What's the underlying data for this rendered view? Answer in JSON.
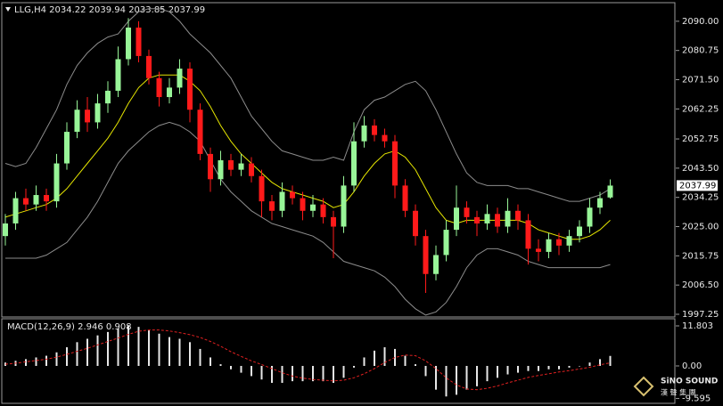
{
  "chart_data": [
    {
      "type": "candlestick",
      "title": "LLG,H4 2034.22 2039.94 2033.85 2037.99",
      "up_color": "#98f598",
      "down_color": "#ff1a1a",
      "ylim": [
        1996.4,
        2095.6
      ],
      "yticks": [
        {
          "value": 2090,
          "label": "2090.00"
        },
        {
          "value": 2080.75,
          "label": "2080.75"
        },
        {
          "value": 2071.5,
          "label": "2071.50"
        },
        {
          "value": 2062.25,
          "label": "2062.25"
        },
        {
          "value": 2052.75,
          "label": "2052.75"
        },
        {
          "value": 2043.5,
          "label": "2043.50"
        },
        {
          "value": 2034.25,
          "label": "2034.25"
        },
        {
          "value": 2025,
          "label": "2025.00"
        },
        {
          "value": 2015.75,
          "label": "2015.75"
        },
        {
          "value": 2006.5,
          "label": "2006.50"
        },
        {
          "value": 1997.25,
          "label": "1997.25"
        }
      ],
      "last_price": 2037.99,
      "open": [
        2022,
        2026,
        2034,
        2032,
        2035,
        2033,
        2045,
        2055,
        2062,
        2058,
        2064,
        2068,
        2078,
        2088,
        2079,
        2072,
        2066,
        2069,
        2075,
        2062,
        2048,
        2040,
        2046,
        2043,
        2045,
        2041,
        2033,
        2030,
        2036,
        2034,
        2030,
        2032,
        2028,
        2025,
        2038,
        2052,
        2057,
        2054,
        2052,
        2038,
        2030,
        2022,
        2010,
        2016,
        2024,
        2031,
        2028,
        2026,
        2029,
        2025,
        2030,
        2027,
        2018,
        2017,
        2021,
        2019,
        2022,
        2025,
        2031,
        2034.22
      ],
      "high": [
        2029,
        2036,
        2037,
        2038,
        2037,
        2048,
        2058,
        2065,
        2066,
        2067,
        2071,
        2082,
        2091,
        2090,
        2081,
        2074,
        2072,
        2078,
        2077,
        2064,
        2050,
        2049,
        2048,
        2048,
        2047,
        2043,
        2035,
        2039,
        2038,
        2036,
        2035,
        2034,
        2030,
        2041,
        2058,
        2060,
        2059,
        2056,
        2054,
        2040,
        2032,
        2024,
        2019,
        2027,
        2038,
        2033,
        2030,
        2032,
        2031,
        2034,
        2032,
        2029,
        2021,
        2023,
        2023,
        2024,
        2027,
        2034,
        2036,
        2039.94
      ],
      "low": [
        2019,
        2024,
        2030,
        2030,
        2030,
        2031,
        2043,
        2053,
        2055,
        2056,
        2061,
        2066,
        2076,
        2077,
        2070,
        2063,
        2064,
        2067,
        2058,
        2046,
        2036,
        2038,
        2041,
        2041,
        2039,
        2028,
        2027,
        2028,
        2032,
        2027,
        2028,
        2026,
        2015,
        2023,
        2036,
        2050,
        2052,
        2050,
        2034,
        2028,
        2019,
        2004,
        2008,
        2014,
        2022,
        2026,
        2022,
        2024,
        2023,
        2023,
        2024,
        2013,
        2014,
        2015,
        2016,
        2017,
        2020,
        2023,
        2029,
        2033.85
      ],
      "close": [
        2026,
        2034,
        2032,
        2035,
        2033,
        2045,
        2055,
        2062,
        2058,
        2064,
        2068,
        2078,
        2088,
        2079,
        2072,
        2066,
        2069,
        2075,
        2062,
        2048,
        2040,
        2046,
        2043,
        2045,
        2041,
        2033,
        2030,
        2036,
        2034,
        2030,
        2032,
        2028,
        2025,
        2038,
        2052,
        2057,
        2054,
        2052,
        2038,
        2030,
        2022,
        2010,
        2016,
        2024,
        2031,
        2028,
        2026,
        2029,
        2025,
        2030,
        2027,
        2018,
        2017,
        2021,
        2019,
        2022,
        2025,
        2031,
        2034,
        2037.99
      ],
      "lines": [
        {
          "color": "#e6e600",
          "values": [
            2028,
            2029,
            2030,
            2031,
            2032,
            2034,
            2037,
            2041,
            2045,
            2049,
            2053,
            2058,
            2064,
            2069,
            2072,
            2073,
            2073,
            2073,
            2071,
            2068,
            2063,
            2057,
            2052,
            2048,
            2045,
            2042,
            2039,
            2037,
            2036,
            2035,
            2034,
            2033,
            2031,
            2032,
            2036,
            2041,
            2045,
            2048,
            2049,
            2047,
            2043,
            2037,
            2031,
            2027,
            2026,
            2027,
            2027,
            2027,
            2027,
            2027,
            2027,
            2026,
            2024,
            2023,
            2022,
            2021,
            2021,
            2022,
            2024,
            2027
          ]
        },
        {
          "color": "#8c8c8c",
          "values": [
            2045,
            2044,
            2045,
            2050,
            2056,
            2062,
            2070,
            2076,
            2080,
            2083,
            2085,
            2086,
            2090,
            2093,
            2094,
            2094,
            2093,
            2090,
            2086,
            2083,
            2080,
            2076,
            2072,
            2066,
            2060,
            2056,
            2052,
            2049,
            2048,
            2047,
            2046,
            2046,
            2047,
            2046,
            2055,
            2062,
            2065,
            2066,
            2068,
            2070,
            2071,
            2068,
            2062,
            2055,
            2048,
            2042,
            2039,
            2038,
            2038,
            2038,
            2037,
            2037,
            2036,
            2035,
            2034,
            2033,
            2033,
            2034,
            2035,
            2037
          ]
        },
        {
          "color": "#8c8c8c",
          "values": [
            2015,
            2015,
            2015,
            2015,
            2016,
            2018,
            2020,
            2024,
            2028,
            2033,
            2039,
            2045,
            2049,
            2052,
            2055,
            2057,
            2058,
            2057,
            2055,
            2052,
            2046,
            2040,
            2036,
            2033,
            2030,
            2028,
            2026,
            2025,
            2024,
            2023,
            2022,
            2020,
            2017,
            2014,
            2013,
            2012,
            2011,
            2009,
            2006,
            2002,
            1999,
            1997,
            1998,
            2001,
            2006,
            2012,
            2016,
            2018,
            2018,
            2017,
            2016,
            2014,
            2013,
            2012,
            2012,
            2012,
            2012,
            2012,
            2012,
            2013
          ]
        }
      ]
    },
    {
      "type": "macd",
      "title": "MACD(12,26,9) 2.946 0.908",
      "color": "#e8e8e8",
      "ylim": [
        -10.76,
        13.9
      ],
      "yticks": [
        11.803,
        {
          "value": 0,
          "label": "0.00"
        },
        -9.595
      ],
      "values": [
        1.0,
        1.5,
        2.0,
        2.5,
        3.0,
        4.0,
        5.5,
        7.0,
        8.0,
        9.0,
        10.0,
        11.0,
        12.0,
        11.5,
        10.5,
        9.5,
        8.5,
        8.0,
        7.0,
        5.0,
        2.5,
        0.5,
        -1.0,
        -2.0,
        -3.0,
        -4.0,
        -5.0,
        -5.0,
        -4.5,
        -4.5,
        -4.5,
        -4.5,
        -5.0,
        -3.5,
        -0.5,
        2.5,
        4.5,
        5.5,
        5.0,
        3.0,
        0.5,
        -3.0,
        -7.0,
        -9.0,
        -8.5,
        -7.0,
        -6.0,
        -4.5,
        -3.5,
        -2.5,
        -2.0,
        -1.5,
        -1.5,
        -1.0,
        -1.0,
        -0.5,
        0.0,
        1.0,
        2.0,
        2.946
      ],
      "signal": {
        "color": "#e02020",
        "values": [
          0.5,
          0.8,
          1.2,
          1.6,
          2.0,
          2.6,
          3.4,
          4.3,
          5.2,
          6.2,
          7.2,
          8.2,
          9.3,
          10.2,
          10.6,
          10.6,
          10.3,
          9.8,
          9.2,
          8.4,
          7.2,
          5.8,
          4.2,
          2.8,
          1.5,
          0.4,
          -0.8,
          -2.0,
          -3.0,
          -3.6,
          -4.0,
          -4.2,
          -4.4,
          -4.2,
          -3.5,
          -2.3,
          -0.8,
          1.0,
          2.5,
          3.2,
          3.0,
          1.5,
          -0.8,
          -3.5,
          -5.6,
          -6.8,
          -7.0,
          -6.6,
          -5.9,
          -5.0,
          -4.2,
          -3.4,
          -2.8,
          -2.3,
          -1.8,
          -1.4,
          -0.9,
          -0.4,
          0.3,
          0.908
        ]
      }
    }
  ],
  "watermark": {
    "brand": "SiNO SOUND",
    "subtitle": "漢 聲 集 團"
  }
}
